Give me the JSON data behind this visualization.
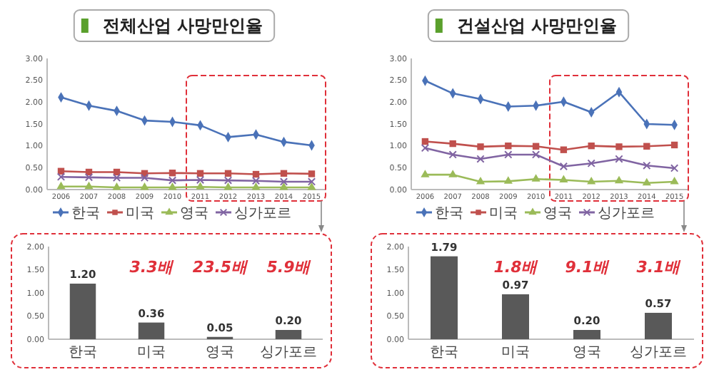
{
  "chart_data": [
    {
      "type": "line",
      "title": "전체산업 사망만인율",
      "categories": [
        "2006",
        "2007",
        "2008",
        "2009",
        "2010",
        "2011",
        "2012",
        "2013",
        "2014",
        "2015"
      ],
      "series": [
        {
          "name": "한국",
          "color": "#4a72b8",
          "marker": "diamond",
          "values": [
            2.11,
            1.92,
            1.8,
            1.58,
            1.55,
            1.47,
            1.2,
            1.26,
            1.09,
            1.01
          ]
        },
        {
          "name": "미국",
          "color": "#c0504d",
          "marker": "square",
          "values": [
            0.42,
            0.4,
            0.4,
            0.37,
            0.38,
            0.37,
            0.37,
            0.35,
            0.37,
            0.36
          ]
        },
        {
          "name": "영국",
          "color": "#9bbb59",
          "marker": "triangle",
          "values": [
            0.07,
            0.07,
            0.05,
            0.05,
            0.05,
            0.06,
            0.05,
            0.05,
            0.05,
            0.05
          ]
        },
        {
          "name": "싱가포르",
          "color": "#8064a2",
          "marker": "cross",
          "values": [
            0.29,
            0.28,
            0.27,
            0.27,
            0.21,
            0.22,
            0.21,
            0.2,
            0.18,
            0.18
          ]
        }
      ],
      "ylim": [
        0,
        3
      ],
      "yticks": [
        {
          "value": 0,
          "label": "0.00"
        },
        {
          "value": 0.5,
          "label": "0.50"
        },
        {
          "value": 1,
          "label": "1.00"
        },
        {
          "value": 1.5,
          "label": "1.50"
        },
        {
          "value": 2,
          "label": "2.00"
        },
        {
          "value": 2.5,
          "label": "2.50"
        },
        {
          "value": 3,
          "label": "3.00"
        }
      ],
      "legend": "bottom"
    },
    {
      "type": "line",
      "title": "건설산업 사망만인율",
      "categories": [
        "2006",
        "2007",
        "2008",
        "2009",
        "2010",
        "2011",
        "2012",
        "2013",
        "2014",
        "2015"
      ],
      "series": [
        {
          "name": "한국",
          "color": "#4a72b8",
          "marker": "diamond",
          "values": [
            2.49,
            2.2,
            2.07,
            1.9,
            1.92,
            2.01,
            1.77,
            2.23,
            1.5,
            1.48
          ]
        },
        {
          "name": "미국",
          "color": "#c0504d",
          "marker": "square",
          "values": [
            1.1,
            1.05,
            0.98,
            1.0,
            0.99,
            0.91,
            1.0,
            0.98,
            0.99,
            1.02
          ]
        },
        {
          "name": "영국",
          "color": "#9bbb59",
          "marker": "triangle",
          "values": [
            0.34,
            0.34,
            0.18,
            0.19,
            0.24,
            0.22,
            0.18,
            0.2,
            0.15,
            0.18
          ]
        },
        {
          "name": "싱가포르",
          "color": "#8064a2",
          "marker": "cross",
          "values": [
            0.95,
            0.8,
            0.7,
            0.8,
            0.8,
            0.53,
            0.6,
            0.7,
            0.55,
            0.49
          ]
        }
      ],
      "ylim": [
        0,
        3
      ],
      "yticks": [
        {
          "value": 0,
          "label": "0.00"
        },
        {
          "value": 0.5,
          "label": "0.50"
        },
        {
          "value": 1,
          "label": "1.00"
        },
        {
          "value": 1.5,
          "label": "1.50"
        },
        {
          "value": 2,
          "label": "2.00"
        },
        {
          "value": 2.5,
          "label": "2.50"
        },
        {
          "value": 3,
          "label": "3.00"
        }
      ],
      "legend": "bottom"
    },
    {
      "type": "bar",
      "categories": [
        "한국",
        "미국",
        "영국",
        "싱가포르"
      ],
      "values": [
        1.2,
        0.36,
        0.05,
        0.2
      ],
      "value_labels": [
        "1.20",
        "0.36",
        "0.05",
        "0.20"
      ],
      "color": "#595959",
      "ylim": [
        0,
        2
      ],
      "yticks": [
        {
          "value": 0,
          "label": "0.00"
        },
        {
          "value": 0.5,
          "label": "0.50"
        },
        {
          "value": 1,
          "label": "1.00"
        },
        {
          "value": 1.5,
          "label": "1.50"
        },
        {
          "value": 2,
          "label": "2.00"
        }
      ],
      "annotations": [
        "3.3배",
        "23.5배",
        "5.9배"
      ]
    },
    {
      "type": "bar",
      "categories": [
        "한국",
        "미국",
        "영국",
        "싱가포르"
      ],
      "values": [
        1.79,
        0.97,
        0.2,
        0.57
      ],
      "value_labels": [
        "1.79",
        "0.97",
        "0.20",
        "0.57"
      ],
      "color": "#595959",
      "ylim": [
        0,
        2
      ],
      "yticks": [
        {
          "value": 0,
          "label": "0.00"
        },
        {
          "value": 0.5,
          "label": "0.50"
        },
        {
          "value": 1,
          "label": "1.00"
        },
        {
          "value": 1.5,
          "label": "1.50"
        },
        {
          "value": 2,
          "label": "2.00"
        }
      ],
      "annotations": [
        "1.8배",
        "9.1배",
        "3.1배"
      ]
    }
  ]
}
